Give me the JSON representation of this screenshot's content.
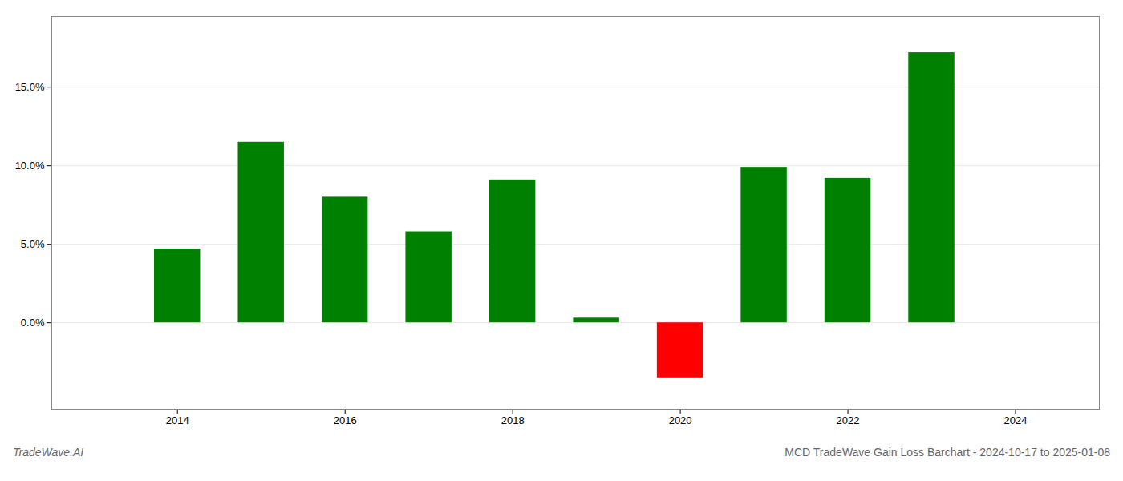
{
  "chart_data": {
    "type": "bar",
    "title": "MCD TradeWave Gain Loss Barchart - 2024-10-17 to 2025-01-08",
    "annotations": [
      "TradeWave.AI"
    ],
    "x": [
      2014,
      2015,
      2016,
      2017,
      2018,
      2019,
      2020,
      2021,
      2022,
      2023
    ],
    "values": [
      0.047,
      0.115,
      0.08,
      0.058,
      0.091,
      0.003,
      -0.035,
      0.099,
      0.092,
      0.172
    ],
    "colors": [
      "#008000",
      "#008000",
      "#008000",
      "#008000",
      "#008000",
      "#008000",
      "#ff0000",
      "#008000",
      "#008000",
      "#008000"
    ],
    "xlim": [
      2012.5,
      2025.0
    ],
    "xticks": [
      2014,
      2016,
      2018,
      2020,
      2022,
      2024
    ],
    "ylim": [
      -0.055,
      0.195
    ],
    "yticks": [
      {
        "value": 0.0,
        "label": "0.0%"
      },
      {
        "value": 0.05,
        "label": "5.0%"
      },
      {
        "value": 0.1,
        "label": "10.0%"
      },
      {
        "value": 0.15,
        "label": "15.0%"
      }
    ],
    "grid": true
  }
}
